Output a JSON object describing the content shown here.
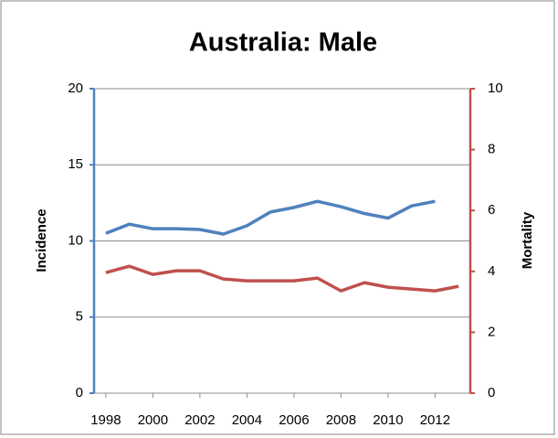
{
  "chart_data": {
    "type": "line",
    "title": "Australia: Male",
    "ylabel": "Incidence",
    "y2label": "Mortality",
    "x": [
      1998,
      1999,
      2000,
      2001,
      2002,
      2003,
      2004,
      2005,
      2006,
      2007,
      2008,
      2009,
      2010,
      2011,
      2012,
      2013
    ],
    "xlim": [
      1997.5,
      2013.5
    ],
    "xticks": [
      1998,
      2000,
      2002,
      2004,
      2006,
      2008,
      2010,
      2012
    ],
    "ylim": [
      0,
      20
    ],
    "yticks": [
      0,
      5,
      10,
      15,
      20
    ],
    "y2lim": [
      0,
      10
    ],
    "y2ticks": [
      0,
      2,
      4,
      6,
      8,
      10
    ],
    "grid": true,
    "series": [
      {
        "name": "Incidence",
        "color": "#4f81bd",
        "axis": "y",
        "values": [
          10.5,
          11.1,
          10.8,
          10.8,
          10.75,
          10.45,
          11.0,
          11.9,
          12.2,
          12.6,
          12.25,
          11.8,
          11.5,
          12.3,
          12.6,
          null
        ]
      },
      {
        "name": "Mortality",
        "color": "#c0504d",
        "axis": "y2",
        "values": [
          3.96,
          4.17,
          3.9,
          4.02,
          4.02,
          3.75,
          3.69,
          3.69,
          3.69,
          3.78,
          3.36,
          3.63,
          3.48,
          3.42,
          3.36,
          3.51
        ]
      }
    ]
  }
}
